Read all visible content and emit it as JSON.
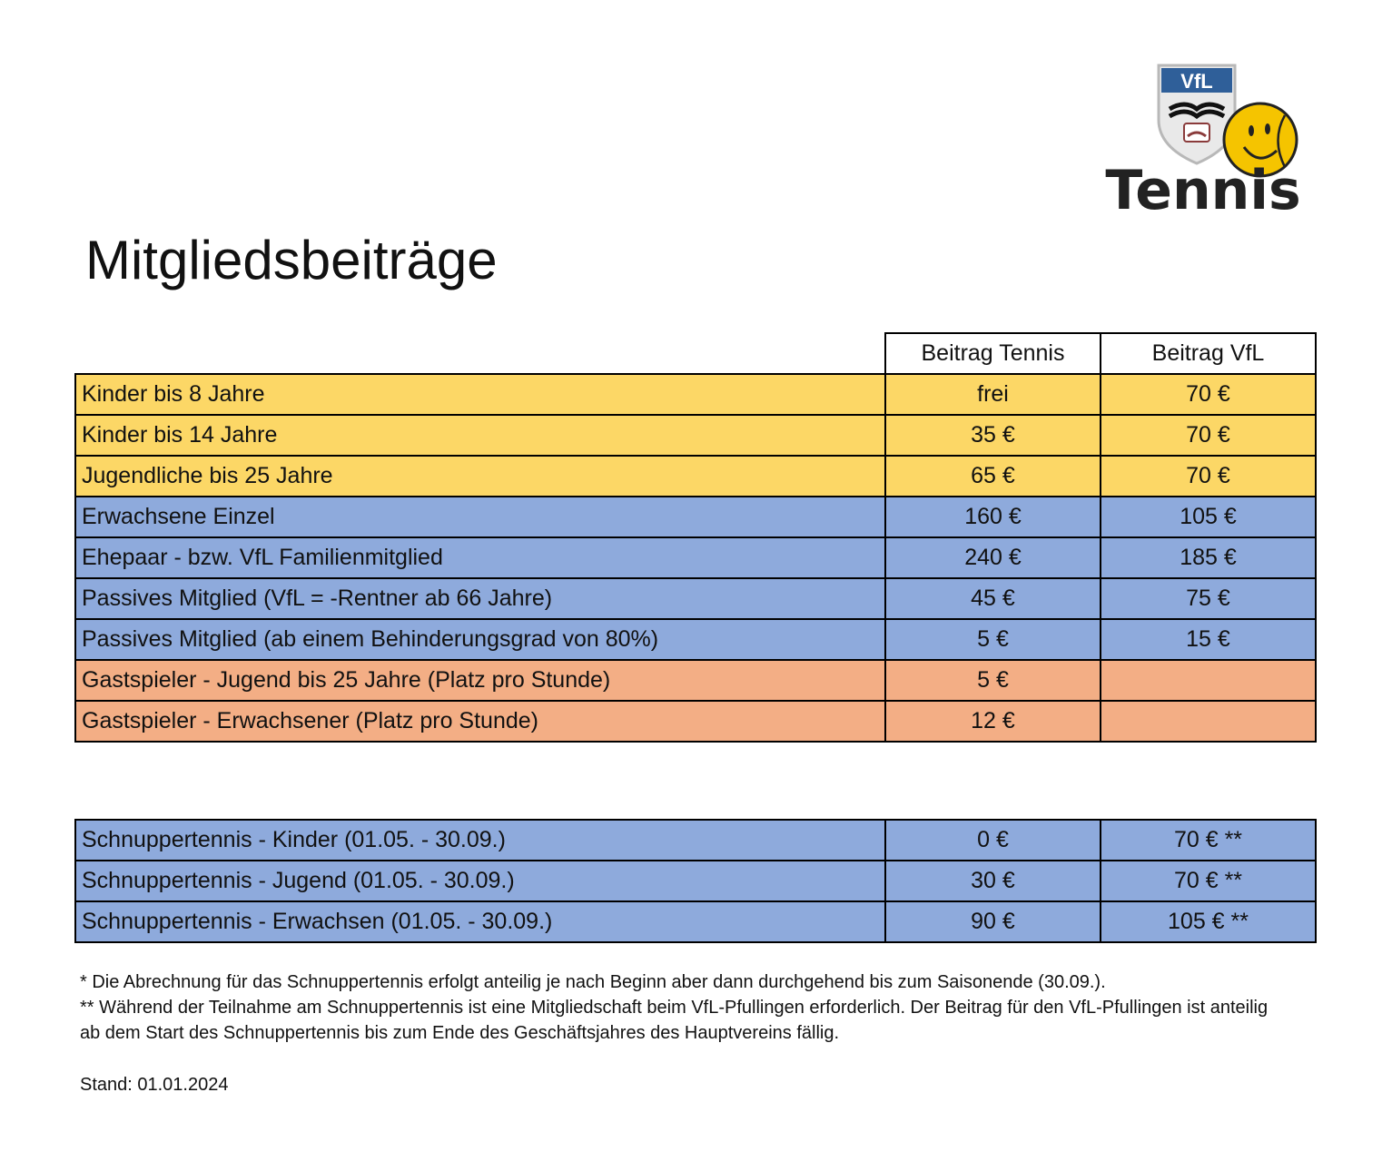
{
  "logo": {
    "shield_text": "VfL",
    "word": "Tennis",
    "colors": {
      "shield_blue": "#2f5f99",
      "ball_yellow": "#f5c400",
      "text": "#222222"
    }
  },
  "title": "Mitgliedsbeiträge",
  "table": {
    "headers": [
      "Beitrag Tennis",
      "Beitrag VfL"
    ],
    "rows": [
      {
        "label": "Kinder bis 8 Jahre",
        "tennis": "frei",
        "vfl": "70 €",
        "group": "yellow"
      },
      {
        "label": "Kinder bis 14 Jahre",
        "tennis": "35 €",
        "vfl": "70 €",
        "group": "yellow"
      },
      {
        "label": "Jugendliche bis 25 Jahre",
        "tennis": "65 €",
        "vfl": "70 €",
        "group": "yellow"
      },
      {
        "label": "Erwachsene Einzel",
        "tennis": "160 €",
        "vfl": "105 €",
        "group": "blue"
      },
      {
        "label": "Ehepaar - bzw. VfL Familienmitglied",
        "tennis": "240 €",
        "vfl": "185 €",
        "group": "blue"
      },
      {
        "label": "Passives Mitglied (VfL = -Rentner ab 66 Jahre)",
        "tennis": "45 €",
        "vfl": "75 €",
        "group": "blue"
      },
      {
        "label": "Passives Mitglied (ab einem Behinderungsgrad von 80%)",
        "tennis": "5 €",
        "vfl": "15 €",
        "group": "blue"
      },
      {
        "label": "Gastspieler - Jugend bis 25 Jahre (Platz pro Stunde)",
        "tennis": "5 €",
        "vfl": "",
        "group": "orange"
      },
      {
        "label": "Gastspieler - Erwachsener (Platz pro Stunde)",
        "tennis": "12 €",
        "vfl": "",
        "group": "orange"
      }
    ]
  },
  "trial_table": {
    "rows": [
      {
        "label": "Schnuppertennis - Kinder (01.05. - 30.09.)",
        "tennis": "0 €",
        "vfl": "70 € **"
      },
      {
        "label": "Schnuppertennis - Jugend (01.05. - 30.09.)",
        "tennis": "30 €",
        "vfl": "70 € **"
      },
      {
        "label": "Schnuppertennis - Erwachsen (01.05. - 30.09.)",
        "tennis": "90 €",
        "vfl": "105 € **"
      }
    ]
  },
  "notes": {
    "note1": "* Die Abrechnung für das Schnuppertennis erfolgt anteilig je nach Beginn aber dann durchgehend bis zum Saisonende (30.09.).",
    "note2": "** Während der Teilnahme am Schnuppertennis ist eine Mitgliedschaft beim VfL-Pfullingen erforderlich. Der Beitrag für den VfL-Pfullingen ist anteilig ab dem Start des Schnuppertennis bis zum Ende des Geschäftsjahres des Hauptvereins fällig."
  },
  "stand": "Stand: 01.01.2024",
  "colors": {
    "yellow": "#fcd766",
    "blue": "#8eaadc",
    "orange": "#f3ae85"
  }
}
